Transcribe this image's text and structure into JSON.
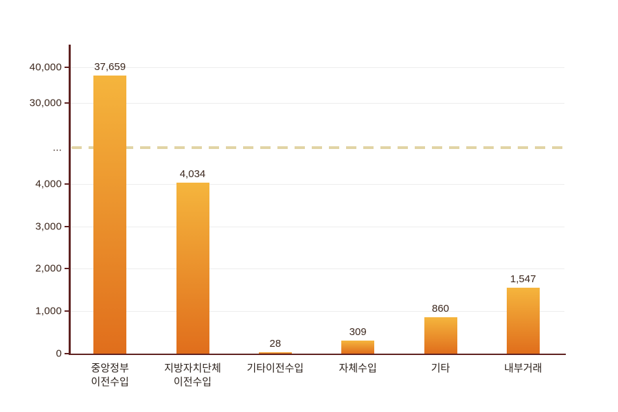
{
  "chart_data": {
    "type": "bar",
    "title": "",
    "categories": [
      "중앙정부\n이전수입",
      "지방자치단체\n이전수입",
      "기타이전수입",
      "자체수입",
      "기타",
      "내부거래"
    ],
    "values": [
      37659,
      4034,
      28,
      309,
      860,
      1547
    ],
    "value_labels": [
      "37,659",
      "4,034",
      "28",
      "309",
      "860",
      "1,547"
    ],
    "y_ticks_top_to_bottom": [
      "40,000",
      "30,000",
      "...",
      "4,000",
      "3,000",
      "2,000",
      "1,000",
      "0"
    ],
    "axis_break": true,
    "break_label": "...",
    "lower_axis_range": [
      0,
      4000
    ],
    "upper_axis_range": [
      30000,
      40000
    ],
    "grid": true,
    "legend": "none",
    "colors": {
      "bar_top": "#f5b53d",
      "bar_bottom": "#e06e1c",
      "axis": "#5e2120",
      "break_line": "#e1d4a5",
      "value_text": "#3b261c",
      "category_text": "#2b211b",
      "tick_text": "#3b261c"
    }
  }
}
